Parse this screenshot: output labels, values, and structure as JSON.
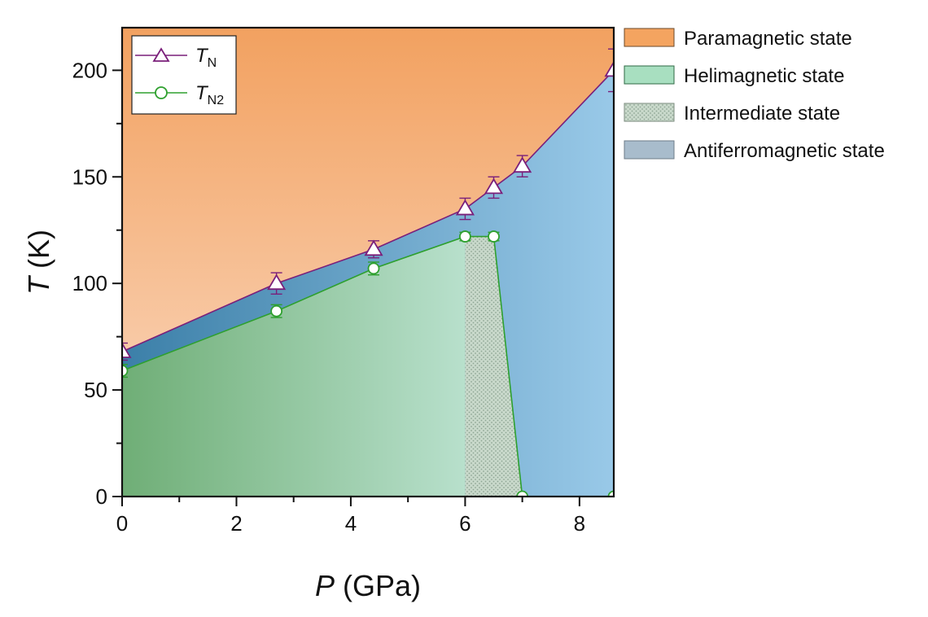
{
  "chart_data": {
    "type": "area",
    "xlabel_symbol": "P",
    "xlabel_unit": " (GPa)",
    "ylabel_symbol": "T",
    "ylabel_unit": " (K)",
    "xlim": [
      0,
      8.6
    ],
    "ylim": [
      0,
      220
    ],
    "x_ticks": [
      0,
      2,
      4,
      6,
      8
    ],
    "y_ticks": [
      0,
      50,
      100,
      150,
      200
    ],
    "grid": false,
    "series": [
      {
        "name_symbol": "T",
        "name_sub": "N",
        "marker": "triangle",
        "color": "#7a1f7a",
        "x": [
          0,
          2.7,
          4.4,
          6.0,
          6.5,
          7.0,
          8.6
        ],
        "y": [
          68,
          100,
          116,
          135,
          145,
          155,
          200
        ],
        "err": [
          4,
          5,
          4,
          5,
          5,
          5,
          10
        ]
      },
      {
        "name_symbol": "T",
        "name_sub": "N2",
        "marker": "circle",
        "color": "#2ea02e",
        "x": [
          0,
          2.7,
          4.4,
          6.0,
          6.5,
          7.0,
          8.6
        ],
        "y": [
          59,
          87,
          107,
          122,
          122,
          0,
          0
        ],
        "err": [
          3,
          3,
          3,
          2,
          2,
          0,
          0
        ]
      }
    ],
    "regions": [
      {
        "label": "Paramagnetic state",
        "color": "#f4a460"
      },
      {
        "label": "Helimagnetic state",
        "color": "#a8dfc0"
      },
      {
        "label": "Intermediate state",
        "color": "#c4d8c4",
        "pattern": "dots"
      },
      {
        "label": "Antiferromagnetic state",
        "color": "#a8bccc"
      }
    ],
    "inset_legend_placement": "top-left",
    "region_legend_placement": "right"
  }
}
